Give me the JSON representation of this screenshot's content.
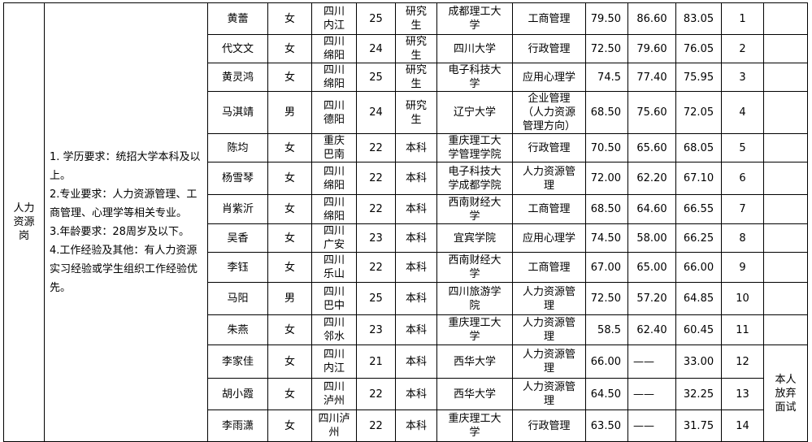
{
  "position": "人力资源岗",
  "requirements": [
    "1. 学历要求：统招大学本科及以上。",
    "2.专业要求：人力资源管理、工商管理、心理学等相关专业。",
    "3.年龄要求：28周岁及以下。",
    "4.工作经验及其他：有人力资源实习经验或学生组织工作经验优先。"
  ],
  "remark_group": "本人放弃面试",
  "rows": [
    {
      "name": "黄蕾",
      "gender": "女",
      "origin": "四川内江",
      "age": "25",
      "edu": "研究生",
      "school": "成都理工大学",
      "major": "工商管理",
      "s1": "79.50",
      "s2": "86.60",
      "total": "83.05",
      "rank": "1"
    },
    {
      "name": "代文文",
      "gender": "女",
      "origin": "四川绵阳",
      "age": "24",
      "edu": "研究生",
      "school": "四川大学",
      "major": "行政管理",
      "s1": "72.50",
      "s2": "79.60",
      "total": "76.05",
      "rank": "2"
    },
    {
      "name": "黄灵鸿",
      "gender": "女",
      "origin": "四川绵阳",
      "age": "25",
      "edu": "研究生",
      "school": "电子科技大学",
      "major": "应用心理学",
      "s1": "74.5",
      "s2": "77.40",
      "total": "75.95",
      "rank": "3"
    },
    {
      "name": "马淇靖",
      "gender": "男",
      "origin": "四川德阳",
      "age": "24",
      "edu": "研究生",
      "school": "辽宁大学",
      "major": "企业管理（人力资源管理方向）",
      "s1": "68.50",
      "s2": "75.60",
      "total": "72.05",
      "rank": "4"
    },
    {
      "name": "陈均",
      "gender": "女",
      "origin": "重庆巴南",
      "age": "22",
      "edu": "本科",
      "school": "重庆理工大学管理学院",
      "major": "行政管理",
      "s1": "70.50",
      "s2": "65.60",
      "total": "68.05",
      "rank": "5"
    },
    {
      "name": "杨雪琴",
      "gender": "女",
      "origin": "四川绵阳",
      "age": "22",
      "edu": "本科",
      "school": "电子科技大学成都学院",
      "major": "人力资源管理",
      "s1": "72.00",
      "s2": "62.20",
      "total": "67.10",
      "rank": "6"
    },
    {
      "name": "肖紫沂",
      "gender": "女",
      "origin": "四川绵阳",
      "age": "22",
      "edu": "本科",
      "school": "西南财经大学",
      "major": "工商管理",
      "s1": "68.50",
      "s2": "64.60",
      "total": "66.55",
      "rank": "7"
    },
    {
      "name": "吴香",
      "gender": "女",
      "origin": "四川广安",
      "age": "23",
      "edu": "本科",
      "school": "宜宾学院",
      "major": "应用心理学",
      "s1": "74.50",
      "s2": "58.00",
      "total": "66.25",
      "rank": "8"
    },
    {
      "name": "李钰",
      "gender": "女",
      "origin": "四川乐山",
      "age": "22",
      "edu": "本科",
      "school": "西南财经大学",
      "major": "工商管理",
      "s1": "67.00",
      "s2": "65.00",
      "total": "66.00",
      "rank": "9"
    },
    {
      "name": "马阳",
      "gender": "男",
      "origin": "四川巴中",
      "age": "25",
      "edu": "本科",
      "school": "四川旅游学院",
      "major": "人力资源管理",
      "s1": "72.50",
      "s2": "57.20",
      "total": "64.85",
      "rank": "10"
    },
    {
      "name": "朱燕",
      "gender": "女",
      "origin": "四川邻水",
      "age": "23",
      "edu": "本科",
      "school": "重庆理工大学",
      "major": "人力资源管理",
      "s1": "58.5",
      "s2": "62.40",
      "total": "60.45",
      "rank": "11"
    },
    {
      "name": "李家佳",
      "gender": "女",
      "origin": "四川内江",
      "age": "21",
      "edu": "本科",
      "school": "西华大学",
      "major": "人力资源管理",
      "s1": "66.00",
      "s2": "——",
      "total": "33.00",
      "rank": "12"
    },
    {
      "name": "胡小霞",
      "gender": "女",
      "origin": "四川泸州",
      "age": "22",
      "edu": "本科",
      "school": "西华大学",
      "major": "人力资源管理",
      "s1": "64.50",
      "s2": "——",
      "total": "32.25",
      "rank": "13"
    },
    {
      "name": "李雨潇",
      "gender": "女",
      "origin": "四川泸州",
      "age": "22",
      "edu": "本科",
      "school": "重庆理工大学",
      "major": "行政管理",
      "s1": "63.50",
      "s2": "——",
      "total": "31.75",
      "rank": "14"
    }
  ]
}
